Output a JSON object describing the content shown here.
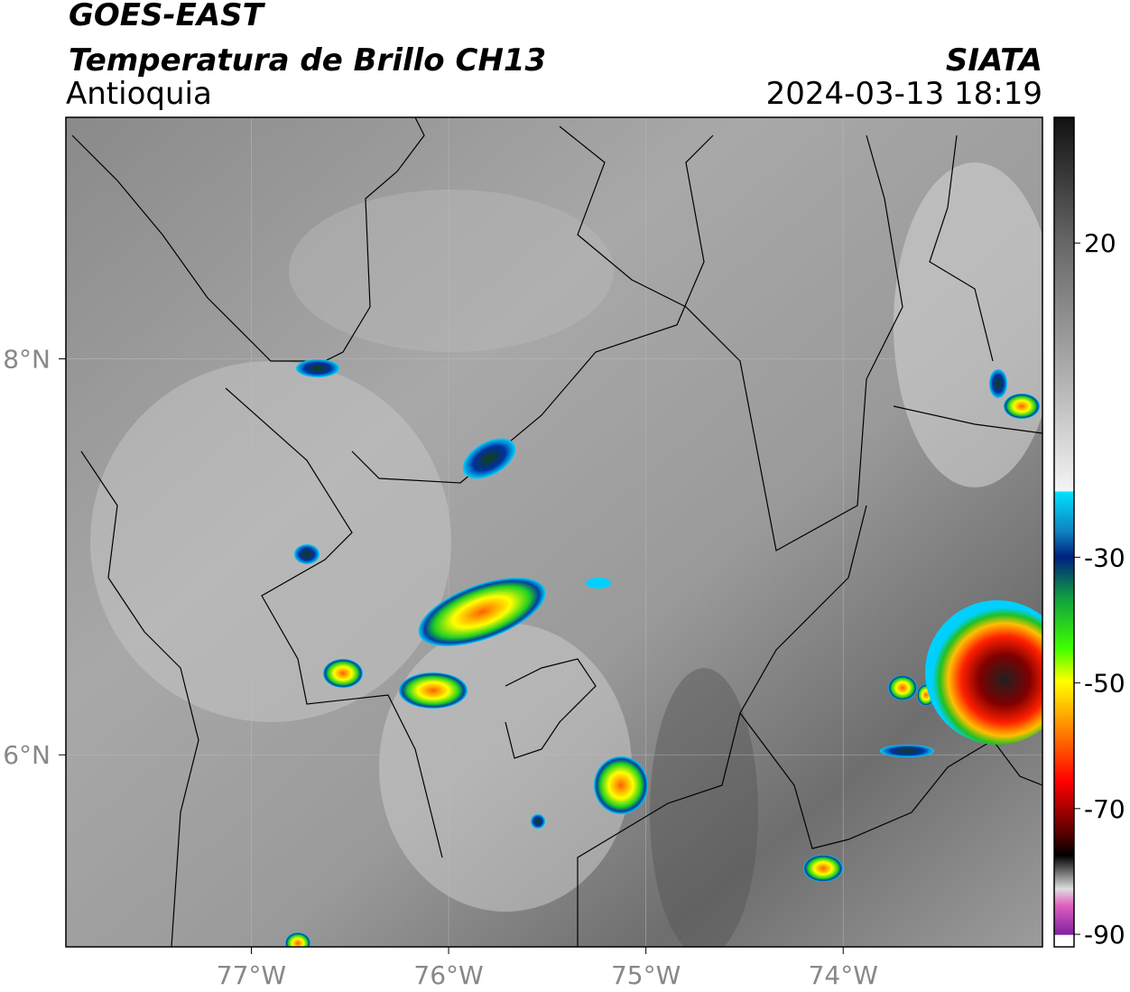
{
  "map": {
    "title": "GOES-EAST",
    "subtitle": "Temperatura de Brillo CH13",
    "region": "Antioquia",
    "source": "SIATA",
    "timestamp": "2024-03-13 18:19",
    "xlim": [
      -77.94,
      -72.99
    ],
    "ylim": [
      5.03,
      9.22
    ],
    "xticks": [
      {
        "value": -77,
        "label": "77°W"
      },
      {
        "value": -76,
        "label": "76°W"
      },
      {
        "value": -75,
        "label": "75°W"
      },
      {
        "value": -74,
        "label": "74°W"
      }
    ],
    "yticks": [
      {
        "value": 8,
        "label": "8°N"
      },
      {
        "value": 6,
        "label": "6°N"
      }
    ],
    "grid": true,
    "colorbar": {
      "lim": [
        -92,
        40
      ],
      "ticks": [
        20,
        -30,
        -50,
        -70,
        -90
      ]
    }
  }
}
